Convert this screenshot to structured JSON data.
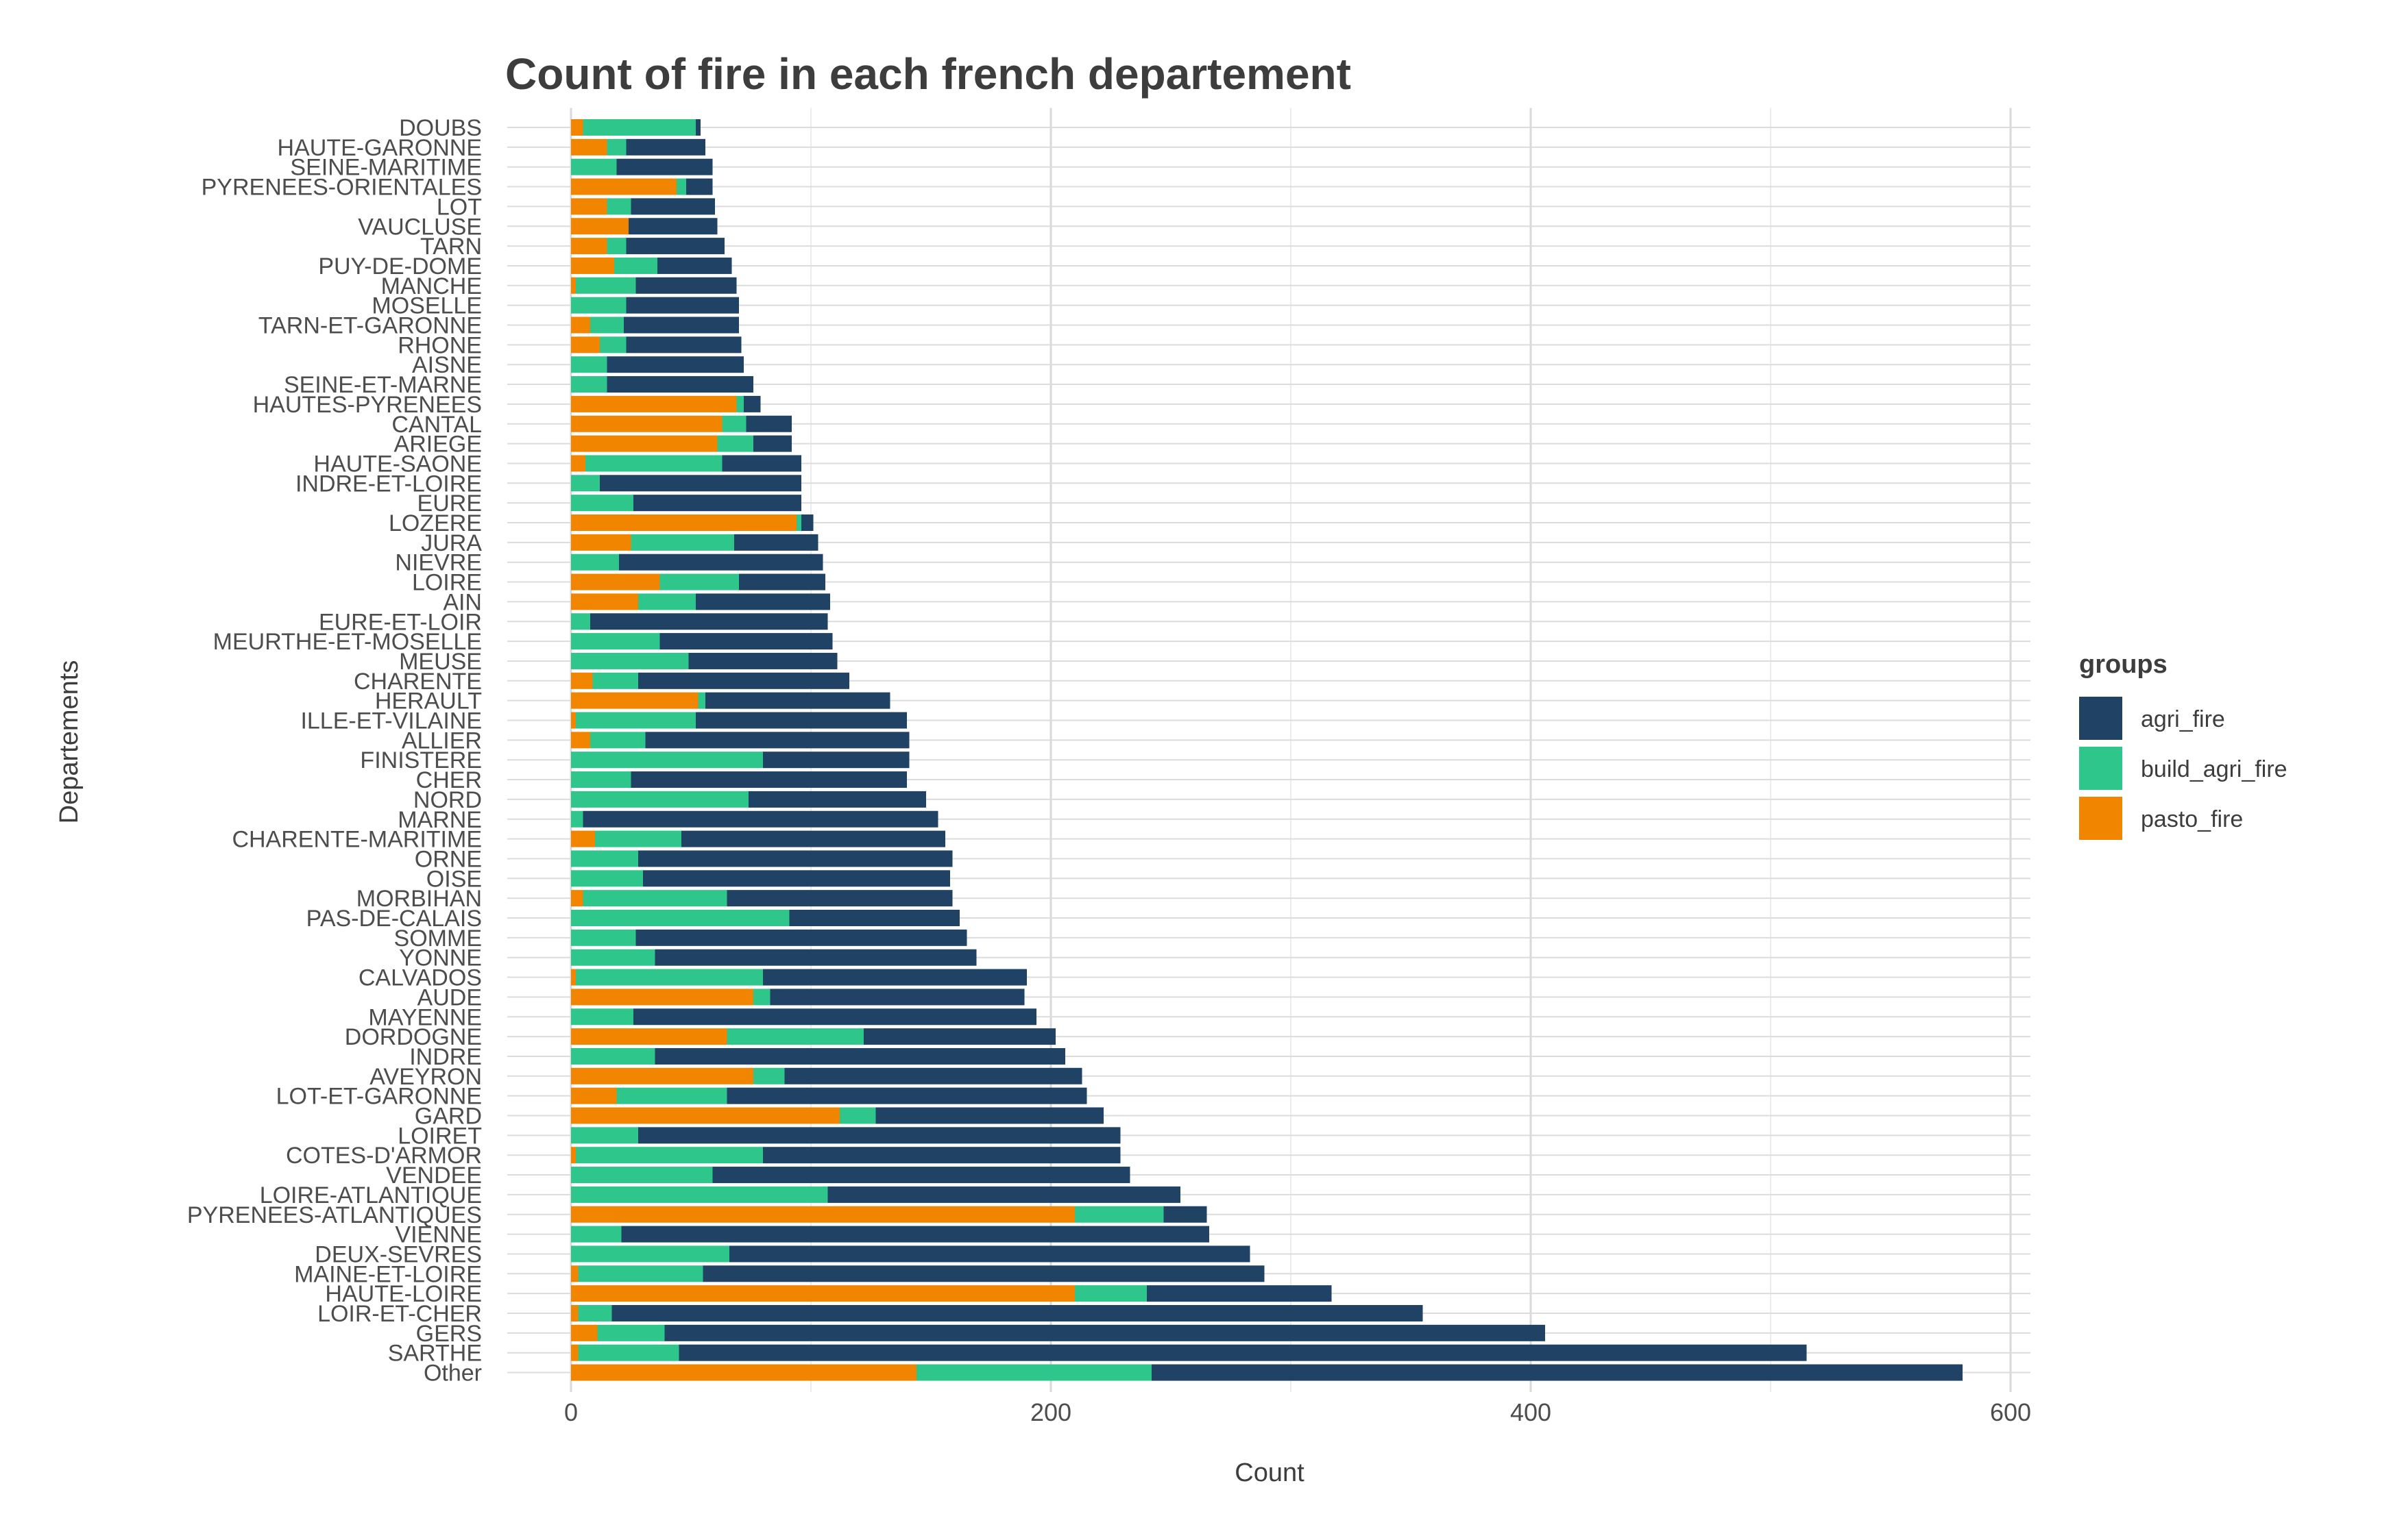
{
  "chart_data": {
    "type": "bar",
    "orientation": "horizontal",
    "stacked": true,
    "title": "Count of fire in each french departement",
    "xlabel": "Count",
    "ylabel": "Departements",
    "xlim": [
      0,
      610
    ],
    "xticks": [
      0,
      200,
      400,
      600
    ],
    "grid": true,
    "legend_title": "groups",
    "legend_position": "right",
    "categories": [
      "DOUBS",
      "HAUTE-GARONNE",
      "SEINE-MARITIME",
      "PYRENEES-ORIENTALES",
      "LOT",
      "VAUCLUSE",
      "TARN",
      "PUY-DE-DOME",
      "MANCHE",
      "MOSELLE",
      "TARN-ET-GARONNE",
      "RHONE",
      "AISNE",
      "SEINE-ET-MARNE",
      "HAUTES-PYRENEES",
      "CANTAL",
      "ARIEGE",
      "HAUTE-SAONE",
      "INDRE-ET-LOIRE",
      "EURE",
      "LOZERE",
      "JURA",
      "NIEVRE",
      "LOIRE",
      "AIN",
      "EURE-ET-LOIR",
      "MEURTHE-ET-MOSELLE",
      "MEUSE",
      "CHARENTE",
      "HERAULT",
      "ILLE-ET-VILAINE",
      "ALLIER",
      "FINISTERE",
      "CHER",
      "NORD",
      "MARNE",
      "CHARENTE-MARITIME",
      "ORNE",
      "OISE",
      "MORBIHAN",
      "PAS-DE-CALAIS",
      "SOMME",
      "YONNE",
      "CALVADOS",
      "AUDE",
      "MAYENNE",
      "DORDOGNE",
      "INDRE",
      "AVEYRON",
      "LOT-ET-GARONNE",
      "GARD",
      "LOIRET",
      "COTES-D'ARMOR",
      "VENDEE",
      "LOIRE-ATLANTIQUE",
      "PYRENEES-ATLANTIQUES",
      "VIENNE",
      "DEUX-SEVRES",
      "MAINE-ET-LOIRE",
      "HAUTE-LOIRE",
      "LOIR-ET-CHER",
      "GERS",
      "SARTHE",
      "Other"
    ],
    "series": [
      {
        "name": "pasto_fire",
        "color": "#F28500",
        "values": [
          5,
          15,
          0,
          44,
          15,
          24,
          15,
          18,
          2,
          0,
          8,
          12,
          0,
          0,
          69,
          63,
          61,
          6,
          0,
          0,
          94,
          25,
          0,
          37,
          28,
          0,
          0,
          0,
          9,
          53,
          2,
          8,
          0,
          0,
          0,
          0,
          10,
          0,
          0,
          5,
          0,
          0,
          0,
          2,
          76,
          0,
          65,
          0,
          76,
          19,
          112,
          0,
          2,
          0,
          0,
          210,
          0,
          0,
          3,
          210,
          3,
          11,
          3,
          144
        ]
      },
      {
        "name": "build_agri_fire",
        "color": "#2EC68A",
        "values": [
          47,
          8,
          19,
          4,
          10,
          0,
          8,
          18,
          25,
          23,
          14,
          11,
          15,
          15,
          3,
          10,
          15,
          57,
          12,
          26,
          2,
          43,
          20,
          33,
          24,
          8,
          37,
          49,
          19,
          3,
          50,
          23,
          80,
          25,
          74,
          5,
          36,
          28,
          30,
          60,
          91,
          27,
          35,
          78,
          7,
          26,
          57,
          35,
          13,
          46,
          15,
          28,
          78,
          59,
          107,
          37,
          21,
          66,
          52,
          30,
          14,
          28,
          42,
          98
        ]
      },
      {
        "name": "agri_fire",
        "color": "#1F4265",
        "values": [
          2,
          33,
          40,
          11,
          35,
          37,
          41,
          31,
          42,
          47,
          48,
          48,
          57,
          61,
          7,
          19,
          16,
          33,
          84,
          70,
          5,
          35,
          85,
          36,
          56,
          99,
          72,
          62,
          88,
          77,
          88,
          110,
          61,
          115,
          74,
          148,
          110,
          131,
          128,
          94,
          71,
          138,
          134,
          110,
          106,
          168,
          80,
          171,
          124,
          150,
          95,
          201,
          149,
          174,
          147,
          18,
          245,
          217,
          234,
          77,
          338,
          367,
          470,
          338
        ]
      }
    ]
  }
}
